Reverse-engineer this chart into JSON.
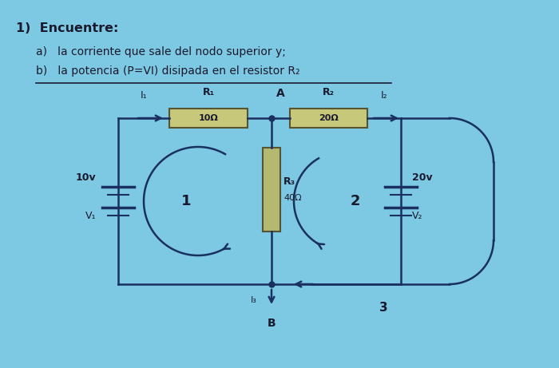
{
  "bg_color": "#7dc8e3",
  "title_text": "1)  Encuentre:",
  "subtitle_a": "a)   la corriente que sale del nodo superior y;",
  "subtitle_b": "b)   la potencia (P=VI) disipada en el resistor R₂",
  "text_color": "#1a1a2e",
  "wire_color": "#1a3060",
  "resistor_fill_h": "#c8c87a",
  "resistor_fill_v": "#b5b870",
  "resistor_border": "#555533"
}
